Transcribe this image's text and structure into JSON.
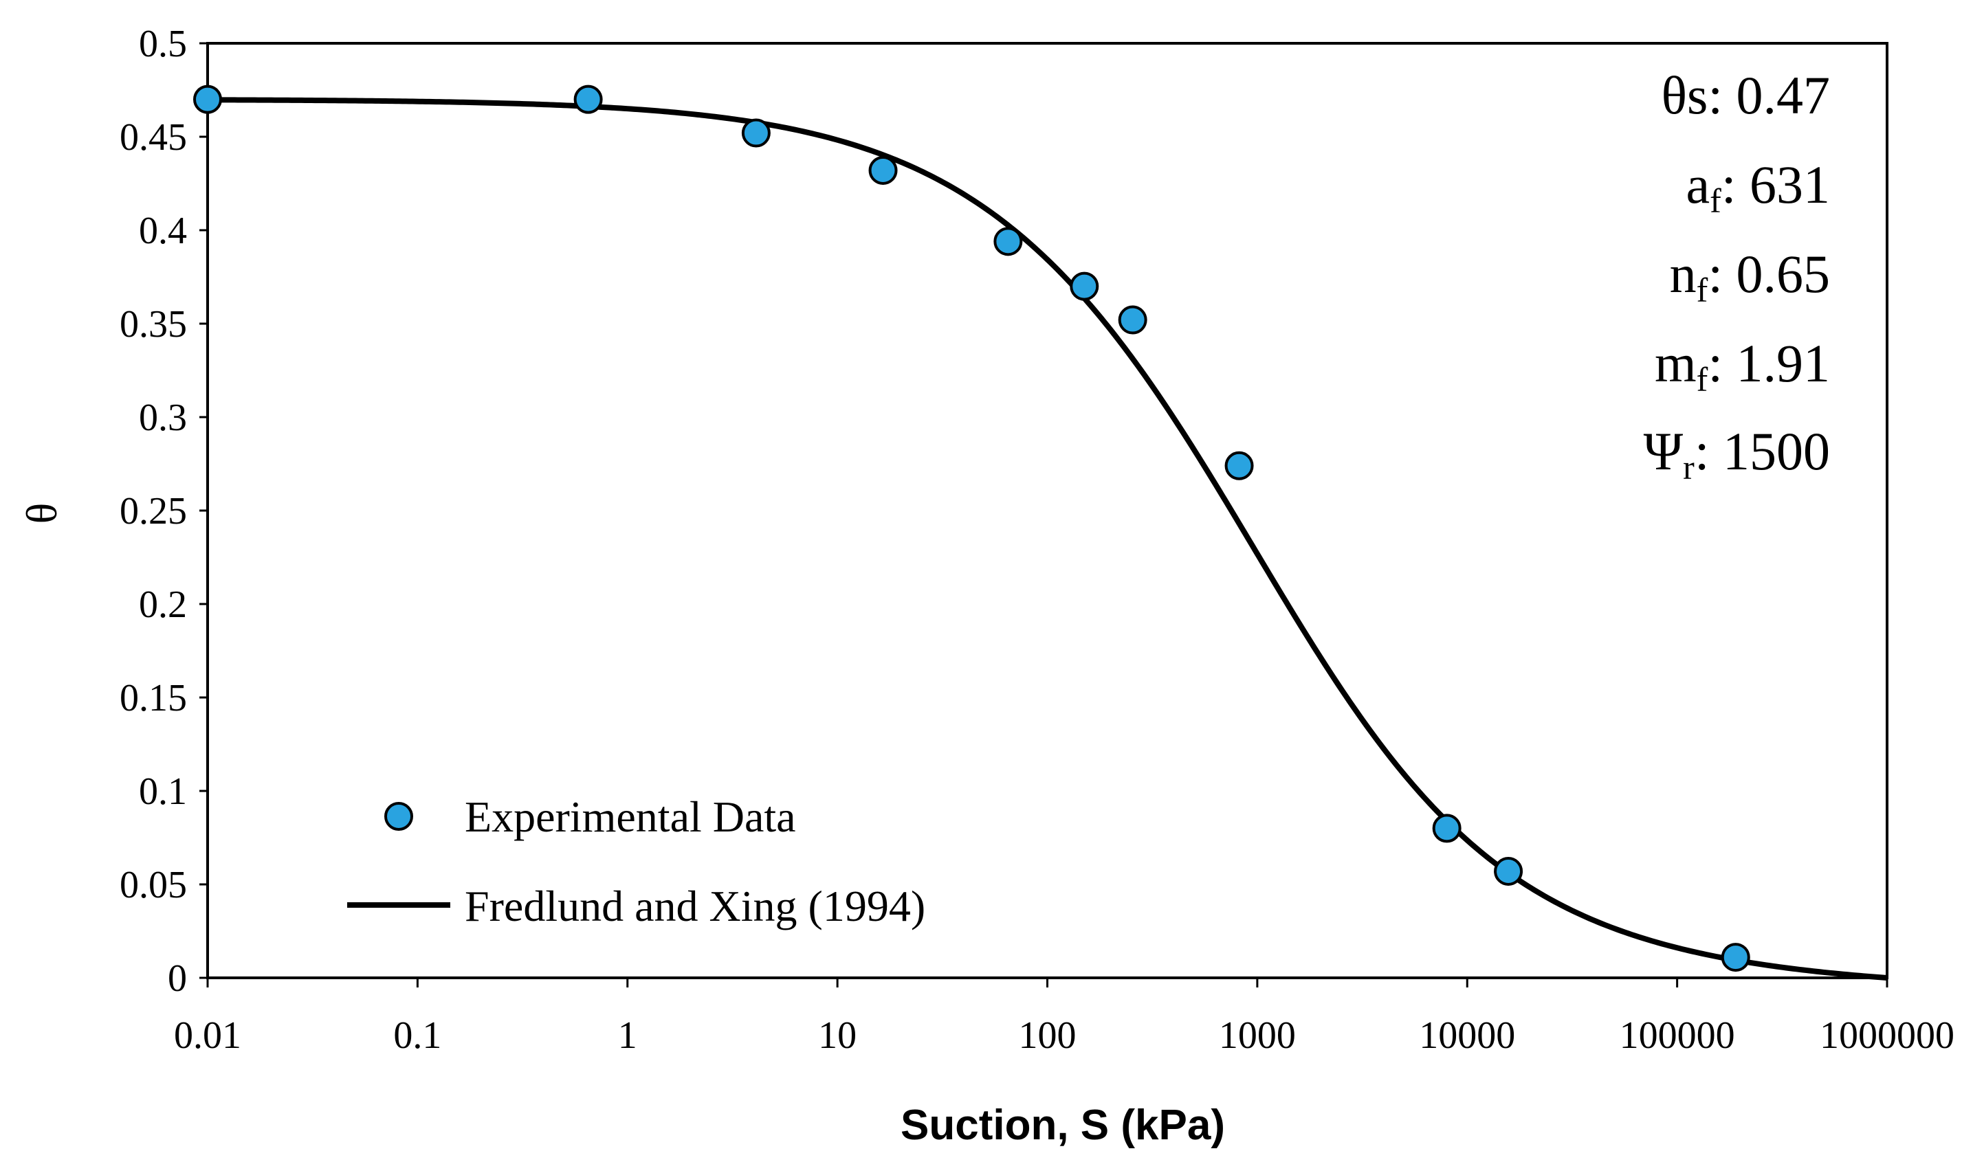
{
  "chart_data": {
    "type": "scatter",
    "title": "",
    "xlabel": "Suction, S (kPa)",
    "ylabel": "θ",
    "xscale": "log",
    "xlim": [
      0.01,
      1000000
    ],
    "ylim": [
      0,
      0.5
    ],
    "grid": false,
    "x_ticks": [
      "0.01",
      "0.1",
      "1",
      "10",
      "100",
      "1000",
      "10000",
      "100000",
      "1000000"
    ],
    "y_ticks": [
      "0",
      "0.05",
      "0.1",
      "0.15",
      "0.2",
      "0.25",
      "0.3",
      "0.35",
      "0.4",
      "0.45",
      "0.5"
    ],
    "legend_position": "bottom-left",
    "series": [
      {
        "name": "Experimental Data",
        "kind": "scatter",
        "color": "#29a3e0",
        "edge_color": "#000000",
        "points": [
          {
            "x": 0.01,
            "y": 0.47
          },
          {
            "x": 0.65,
            "y": 0.47
          },
          {
            "x": 4.1,
            "y": 0.452
          },
          {
            "x": 16.5,
            "y": 0.432
          },
          {
            "x": 65,
            "y": 0.394
          },
          {
            "x": 150,
            "y": 0.37
          },
          {
            "x": 255,
            "y": 0.352
          },
          {
            "x": 820,
            "y": 0.274
          },
          {
            "x": 8000,
            "y": 0.08
          },
          {
            "x": 15700,
            "y": 0.057
          },
          {
            "x": 190000,
            "y": 0.011
          }
        ]
      },
      {
        "name": "Fredlund and Xing (1994)",
        "kind": "line",
        "color": "#000000",
        "model": {
          "theta_s": 0.47,
          "a_f": 631,
          "n_f": 0.65,
          "m_f": 1.91,
          "psi_r": 1500
        }
      }
    ],
    "annotations": [
      {
        "symbol": "θs",
        "sub": "",
        "text": ": 0.47"
      },
      {
        "symbol": "a",
        "sub": "f",
        "text": ": 631"
      },
      {
        "symbol": "n",
        "sub": "f",
        "text": ": 0.65"
      },
      {
        "symbol": "m",
        "sub": "f",
        "text": ": 1.91"
      },
      {
        "symbol": "Ψ",
        "sub": "r",
        "text": ": 1500"
      }
    ]
  }
}
